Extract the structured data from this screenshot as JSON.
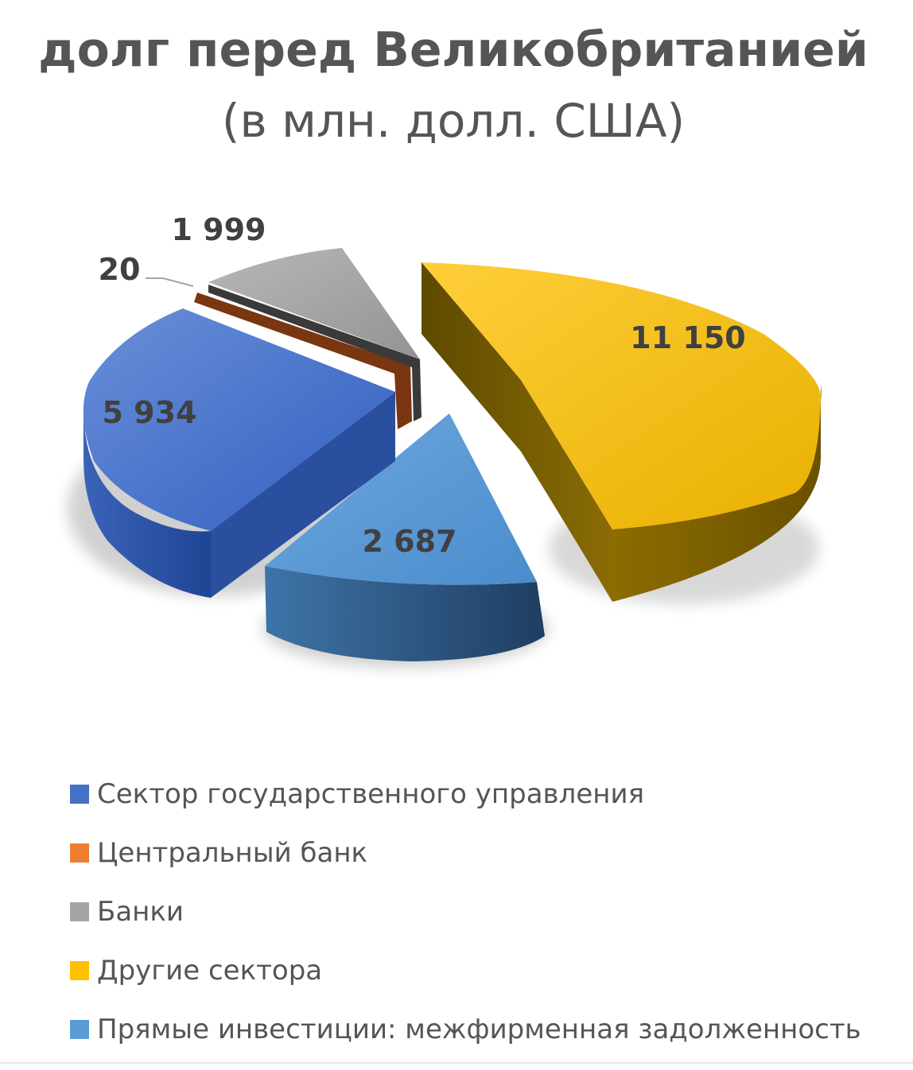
{
  "chart_data": {
    "type": "pie",
    "title": "долг перед Великобританией",
    "subtitle": "(в млн. долл. США)",
    "categories": [
      "Сектор государственного управления",
      "Центральный банк",
      "Банки",
      "Другие сектора",
      "Прямые инвестиции: межфирменная задолженность"
    ],
    "values": [
      5934,
      20,
      1999,
      11150,
      2687
    ],
    "data_labels": [
      "5 934",
      "20",
      "1 999",
      "11 150",
      "2 687"
    ],
    "colors": [
      "#4472c4",
      "#ed7d31",
      "#a5a5a5",
      "#ffc000",
      "#5b9bd5"
    ],
    "style": "3d-exploded",
    "legend": "bottom"
  }
}
